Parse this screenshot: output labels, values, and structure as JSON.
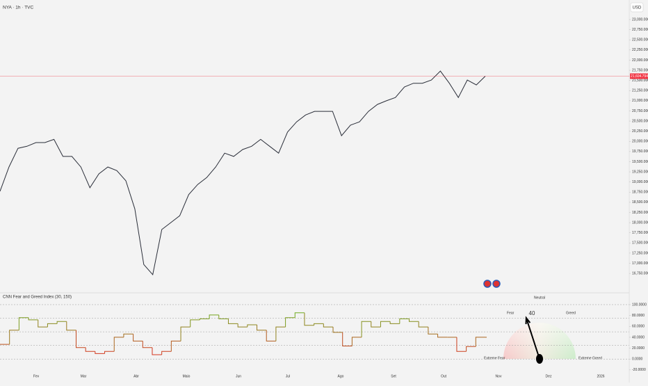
{
  "header": {
    "title": "NYA · 1h · TVC",
    "currency": "USD"
  },
  "chart_data": [
    {
      "type": "line",
      "color": "#2a2e39",
      "values": [
        18770,
        19370,
        19830,
        19880,
        19970,
        19970,
        20050,
        19630,
        19630,
        19370,
        18860,
        19200,
        19370,
        19280,
        19030,
        18340,
        16970,
        16720,
        17830,
        18000,
        18170,
        18690,
        18940,
        19110,
        19370,
        19710,
        19630,
        19800,
        19880,
        20050,
        19880,
        19710,
        20230,
        20480,
        20650,
        20740,
        20740,
        20740,
        20140,
        20400,
        20480,
        20740,
        20910,
        21000,
        21080,
        21340,
        21430,
        21430,
        21510,
        21730,
        21430,
        21080,
        21510,
        21390,
        21604.7949
      ],
      "ylim": [
        16290,
        23480
      ],
      "yticks": [
        {
          "value": 16750,
          "label": "16,750.0000"
        },
        {
          "value": 17000,
          "label": "17,000.0000"
        },
        {
          "value": 17250,
          "label": "17,250.0000"
        },
        {
          "value": 17500,
          "label": "17,500.0000"
        },
        {
          "value": 17750,
          "label": "17,750.0000"
        },
        {
          "value": 18000,
          "label": "18,000.0000"
        },
        {
          "value": 18250,
          "label": "18,250.0000"
        },
        {
          "value": 18500,
          "label": "18,500.0000"
        },
        {
          "value": 18750,
          "label": "18,750.0000"
        },
        {
          "value": 19000,
          "label": "19,000.0000"
        },
        {
          "value": 19250,
          "label": "19,250.0000"
        },
        {
          "value": 19500,
          "label": "19,500.0000"
        },
        {
          "value": 19750,
          "label": "19,750.0000"
        },
        {
          "value": 20000,
          "label": "20,000.0000"
        },
        {
          "value": 20250,
          "label": "20,250.0000"
        },
        {
          "value": 20500,
          "label": "20,500.0000"
        },
        {
          "value": 20750,
          "label": "20,750.0000"
        },
        {
          "value": 21000,
          "label": "21,000.0000"
        },
        {
          "value": 21250,
          "label": "21,250.0000"
        },
        {
          "value": 21500,
          "label": "21,500.0000"
        },
        {
          "value": 21750,
          "label": "21,750.0000"
        },
        {
          "value": 22000,
          "label": "22,000.0000"
        },
        {
          "value": 22250,
          "label": "22,250.0000"
        },
        {
          "value": 22500,
          "label": "22,500.0000"
        },
        {
          "value": 22750,
          "label": "22,750.0000"
        },
        {
          "value": 23000,
          "label": "23,000.0000"
        }
      ],
      "last_value": {
        "value": 21604.7949,
        "label": "21,604.7949"
      },
      "last_color": "#f23645"
    },
    {
      "type": "step",
      "title": "CNN Fear and Greed Index (30, 150)",
      "low_color": "#e0281e",
      "high_color": "#5cc21f",
      "values": [
        27,
        53,
        76,
        72,
        59,
        65,
        69,
        53,
        21,
        14,
        10,
        14,
        40,
        46,
        33,
        21,
        8,
        14,
        33,
        59,
        72,
        74,
        81,
        74,
        65,
        59,
        63,
        53,
        33,
        59,
        76,
        85,
        62,
        65,
        59,
        49,
        24,
        40,
        69,
        59,
        69,
        65,
        74,
        69,
        59,
        46,
        40,
        40,
        14,
        23,
        40,
        40
      ],
      "ylim": [
        -24,
        123
      ],
      "yticks": [
        {
          "value": -20,
          "label": "-20.0000"
        },
        {
          "value": 0,
          "label": "0.0000"
        },
        {
          "value": 20,
          "label": "20.0000"
        },
        {
          "value": 40,
          "label": "40.0000"
        },
        {
          "value": 60,
          "label": "60.0000"
        },
        {
          "value": 80,
          "label": "80.0000"
        },
        {
          "value": 100,
          "label": "100.0000"
        }
      ],
      "levels": [
        0,
        25,
        50,
        75,
        100
      ],
      "gauge": {
        "value": 40,
        "labels": [
          "Extreme Fear",
          "Fear",
          "Neutral",
          "Greed",
          "Extreme Greed"
        ]
      }
    }
  ],
  "time_axis": {
    "labels": [
      "Fev",
      "Mar",
      "Abr",
      "Maio",
      "Jun",
      "Jul",
      "Ago",
      "Set",
      "Out",
      "Nov",
      "Dez",
      "2026"
    ]
  }
}
